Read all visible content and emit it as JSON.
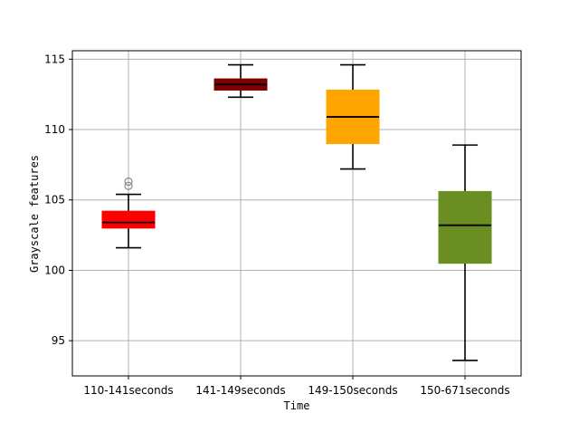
{
  "chart_data": {
    "type": "box",
    "title": "",
    "xlabel": "Time",
    "ylabel": "Grayscale features",
    "categories": [
      "110-141seconds",
      "141-149seconds",
      "149-150seconds",
      "150-671seconds"
    ],
    "boxes": [
      {
        "category": "110-141seconds",
        "whisker_low": 101.6,
        "q1": 103.0,
        "median": 103.4,
        "q3": 104.2,
        "whisker_high": 105.4,
        "outliers": [
          106.0,
          106.3
        ],
        "color": "#ff0000"
      },
      {
        "category": "141-149seconds",
        "whisker_low": 112.3,
        "q1": 112.8,
        "median": 113.2,
        "q3": 113.6,
        "whisker_high": 114.6,
        "outliers": [],
        "color": "#800000"
      },
      {
        "category": "149-150seconds",
        "whisker_low": 107.2,
        "q1": 109.0,
        "median": 110.9,
        "q3": 112.8,
        "whisker_high": 114.6,
        "outliers": [],
        "color": "#ffa500"
      },
      {
        "category": "150-671seconds",
        "whisker_low": 93.6,
        "q1": 100.5,
        "median": 103.2,
        "q3": 105.6,
        "whisker_high": 108.9,
        "outliers": [],
        "color": "#6b8e23"
      }
    ],
    "yticks": [
      "95",
      "100",
      "105",
      "110",
      "115"
    ],
    "ylim": [
      92.5,
      115.6
    ],
    "grid": true,
    "legend": "none"
  }
}
